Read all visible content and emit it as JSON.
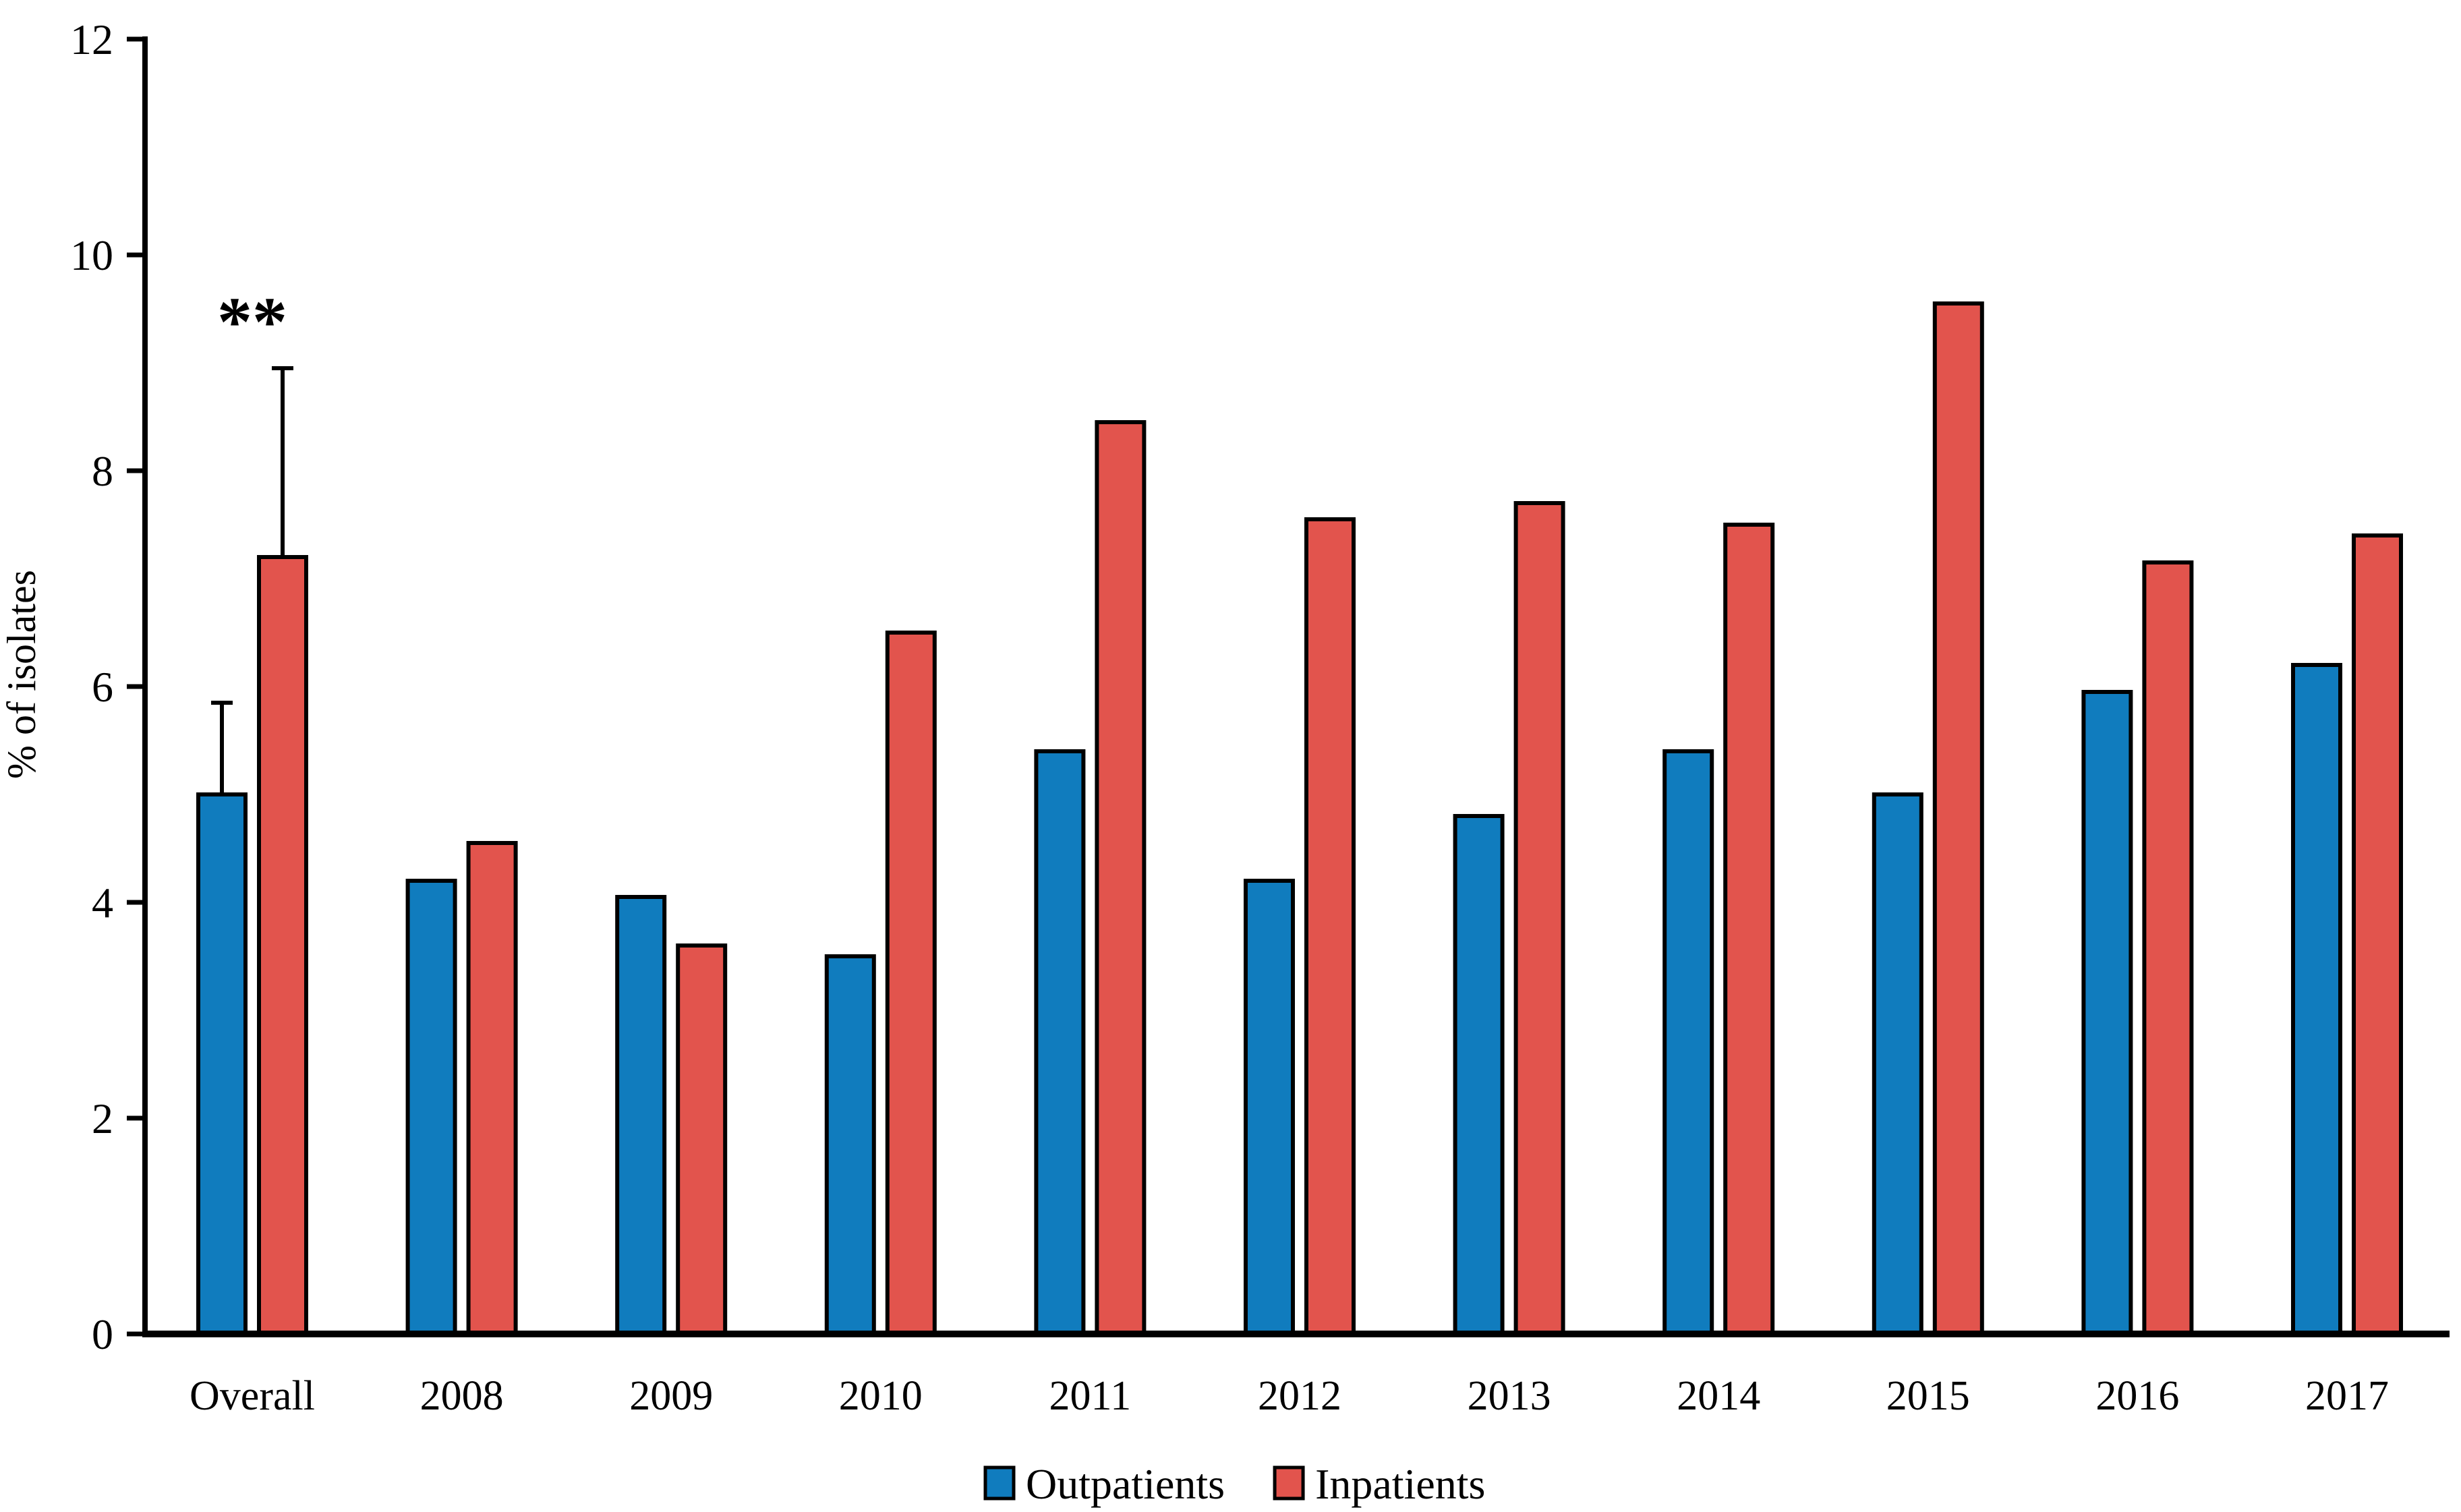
{
  "chart_data": {
    "type": "bar",
    "title": "",
    "ylabel": "% of isolates",
    "xlabel": "",
    "ylim": [
      0,
      12
    ],
    "yticks": [
      0,
      2,
      4,
      6,
      8,
      10,
      12
    ],
    "grid": false,
    "bar_outline_color": "#000000",
    "categories": [
      "Overall",
      "2008",
      "2009",
      "2010",
      "2011",
      "2012",
      "2013",
      "2014",
      "2015",
      "2016",
      "2017"
    ],
    "series": [
      {
        "name": "Outpatients",
        "color": "#107CBE",
        "values": [
          5.0,
          4.2,
          4.05,
          3.5,
          5.4,
          4.2,
          4.8,
          5.4,
          5.0,
          5.95,
          6.2
        ],
        "error_plus": [
          0.85,
          null,
          null,
          null,
          null,
          null,
          null,
          null,
          null,
          null,
          null
        ]
      },
      {
        "name": "Inpatients",
        "color": "#E2544D",
        "values": [
          7.2,
          4.55,
          3.6,
          6.5,
          8.45,
          7.55,
          7.7,
          7.5,
          9.55,
          7.15,
          7.4
        ],
        "error_plus": [
          1.75,
          null,
          null,
          null,
          null,
          null,
          null,
          null,
          null,
          null,
          null
        ]
      }
    ],
    "annotations": [
      {
        "text": "**",
        "category": "Overall"
      }
    ],
    "legend": {
      "position": "bottom",
      "labels": [
        "Outpatients",
        "Inpatients"
      ]
    }
  }
}
